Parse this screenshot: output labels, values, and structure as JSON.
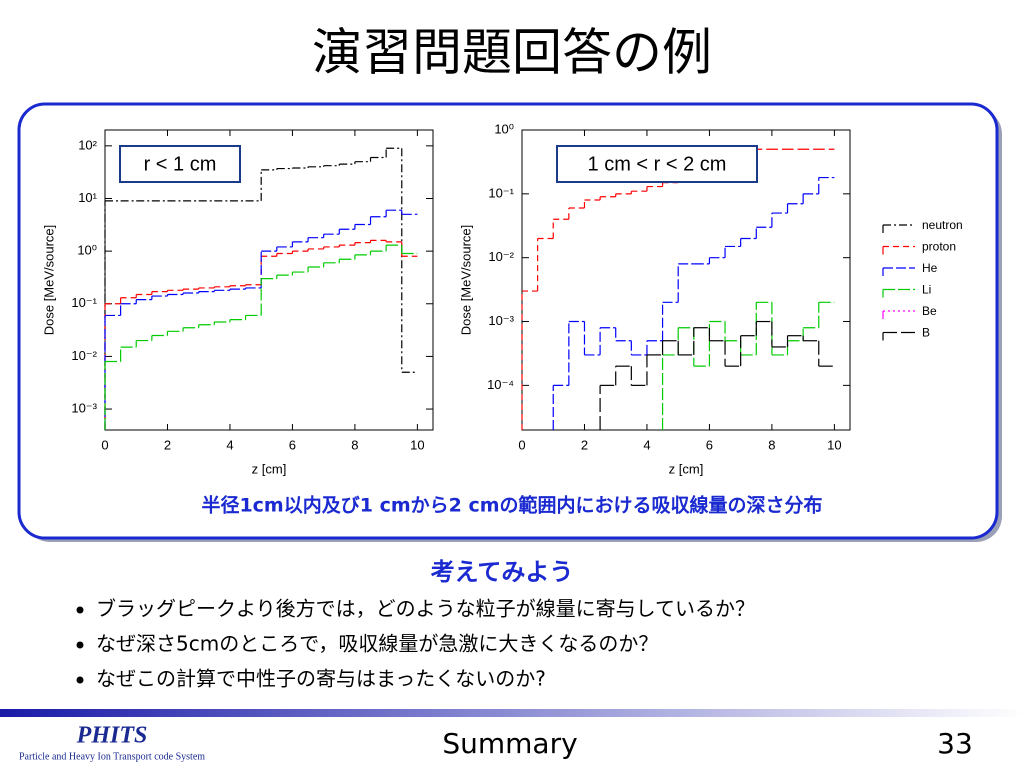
{
  "title": "演習問題回答の例",
  "chart_data": [
    {
      "type": "line",
      "step": true,
      "ylog": true,
      "xlabel": "z [cm]",
      "ylabel": "Dose [MeV/source]",
      "annotation": "r < 1 cm",
      "xlim": [
        0,
        10.5
      ],
      "xticks": [
        0,
        2,
        4,
        6,
        8,
        10
      ],
      "ylim": [
        0.0004,
        200
      ],
      "yticks": [
        {
          "value": 0.001,
          "label": "10⁻³"
        },
        {
          "value": 0.01,
          "label": "10⁻²"
        },
        {
          "value": 0.1,
          "label": "10⁻¹"
        },
        {
          "value": 1,
          "label": "10⁰"
        },
        {
          "value": 10,
          "label": "10¹"
        },
        {
          "value": 100,
          "label": "10²"
        }
      ],
      "x": [
        0.25,
        0.75,
        1.25,
        1.75,
        2.25,
        2.75,
        3.25,
        3.75,
        4.25,
        4.75,
        5.25,
        5.75,
        6.25,
        6.75,
        7.25,
        7.75,
        8.25,
        8.75,
        9.25,
        9.75
      ],
      "series": [
        {
          "color": "#000000",
          "dash": "8 3 2 3",
          "values": [
            9,
            9,
            9,
            9,
            9,
            9,
            9,
            9,
            9,
            9,
            35,
            37,
            38,
            40,
            42,
            45,
            50,
            60,
            90,
            0.005
          ]
        },
        {
          "color": "#ff0000",
          "dash": "6 4",
          "values": [
            0.1,
            0.13,
            0.15,
            0.17,
            0.18,
            0.19,
            0.2,
            0.21,
            0.22,
            0.23,
            0.8,
            0.9,
            1.0,
            1.1,
            1.2,
            1.3,
            1.45,
            1.6,
            1.5,
            0.8
          ]
        },
        {
          "color": "#0000ff",
          "dash": "10 3",
          "values": [
            0.06,
            0.1,
            0.12,
            0.14,
            0.15,
            0.16,
            0.17,
            0.18,
            0.19,
            0.2,
            1.0,
            1.2,
            1.5,
            1.8,
            2.1,
            2.6,
            3.2,
            4.5,
            6,
            5
          ]
        },
        {
          "color": "#00cc00",
          "dash": "12 3",
          "values": [
            0.008,
            0.015,
            0.02,
            0.025,
            0.03,
            0.035,
            0.04,
            0.045,
            0.05,
            0.06,
            0.3,
            0.35,
            0.4,
            0.5,
            0.6,
            0.7,
            0.85,
            1.0,
            1.3,
            0.9
          ]
        }
      ]
    },
    {
      "type": "line",
      "step": true,
      "ylog": true,
      "xlabel": "z [cm]",
      "ylabel": "Dose [MeV/source]",
      "annotation": "1 cm < r < 2 cm",
      "legend": "right-outside",
      "xlim": [
        0,
        10.5
      ],
      "xticks": [
        0,
        2,
        4,
        6,
        8,
        10
      ],
      "ylim": [
        2e-05,
        1
      ],
      "yticks": [
        {
          "value": 0.0001,
          "label": "10⁻⁴"
        },
        {
          "value": 0.001,
          "label": "10⁻³"
        },
        {
          "value": 0.01,
          "label": "10⁻²"
        },
        {
          "value": 0.1,
          "label": "10⁻¹"
        },
        {
          "value": 1,
          "label": "10⁰"
        }
      ],
      "x": [
        0.25,
        0.75,
        1.25,
        1.75,
        2.25,
        2.75,
        3.25,
        3.75,
        4.25,
        4.75,
        5.25,
        5.75,
        6.25,
        6.75,
        7.25,
        7.75,
        8.25,
        8.75,
        9.25,
        9.75
      ],
      "series": [
        {
          "name": "neutron",
          "color": "#000000",
          "dash": "8 3 2 3",
          "values": [
            null,
            null,
            null,
            null,
            null,
            null,
            null,
            null,
            null,
            null,
            null,
            null,
            null,
            null,
            null,
            null,
            null,
            null,
            null,
            null
          ]
        },
        {
          "name": "proton",
          "color": "#ff0000",
          "dash": "6 4",
          "values": [
            0.003,
            0.02,
            0.04,
            0.06,
            0.08,
            0.09,
            0.1,
            0.11,
            0.13,
            0.15,
            0.2,
            0.3,
            0.4,
            0.45,
            0.48,
            0.5,
            0.5,
            0.5,
            0.5,
            0.5
          ]
        },
        {
          "name": "He",
          "color": "#0000ff",
          "dash": "10 3",
          "values": [
            null,
            null,
            0.0001,
            0.001,
            0.0003,
            0.0008,
            0.0005,
            0.0003,
            0.0005,
            0.002,
            0.008,
            0.008,
            0.01,
            0.015,
            0.02,
            0.03,
            0.05,
            0.07,
            0.1,
            0.18
          ]
        },
        {
          "name": "Li",
          "color": "#00cc00",
          "dash": "12 3",
          "values": [
            null,
            null,
            null,
            null,
            null,
            null,
            null,
            null,
            null,
            0.0003,
            0.0008,
            0.0002,
            0.001,
            0.0005,
            0.0003,
            0.002,
            0.0003,
            0.0005,
            0.0008,
            0.002
          ]
        },
        {
          "name": "Be",
          "color": "#ff00ff",
          "dash": "2 3",
          "values": [
            null,
            null,
            null,
            null,
            null,
            null,
            null,
            null,
            null,
            null,
            null,
            null,
            null,
            null,
            null,
            null,
            null,
            null,
            null,
            null
          ]
        },
        {
          "name": "B",
          "color": "#000000",
          "dash": "14 4",
          "values": [
            null,
            null,
            null,
            null,
            null,
            0.0001,
            0.0002,
            0.0001,
            0.0003,
            0.0005,
            0.0003,
            0.0008,
            0.0005,
            0.0002,
            0.0006,
            0.001,
            0.0004,
            0.0006,
            0.0005,
            0.0002
          ]
        }
      ]
    }
  ],
  "caption": "半径1cm以内及び1 cmから2 cmの範囲内における吸収線量の深さ分布",
  "subheading": "考えてみよう",
  "bullets": [
    "ブラッグピークより後方では，どのような粒子が線量に寄与しているか？",
    "なぜ深さ5cmのところで，吸収線量が急激に大きくなるのか？",
    "なぜこの計算で中性子の寄与はまったくないのか?"
  ],
  "footer": {
    "logo": "PHITS",
    "logo_sub": "Particle and Heavy Ion Transport code System",
    "section": "Summary",
    "page": "33"
  }
}
